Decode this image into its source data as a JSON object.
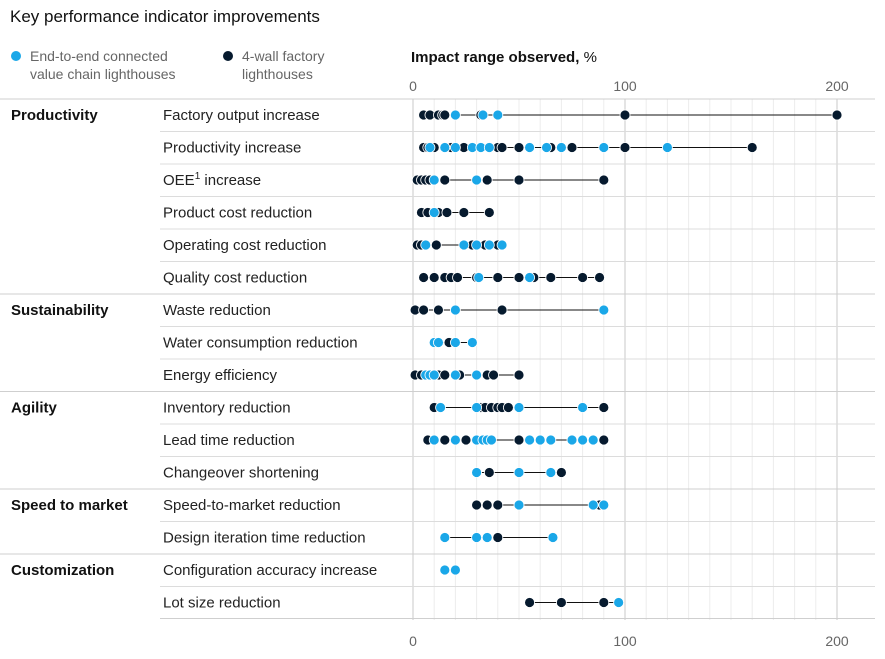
{
  "chart_data": {
    "type": "scatter",
    "title": "Key performance indicator improvements",
    "axis_title_bold": "Impact range observed,",
    "axis_title_unit": "%",
    "x_ticks": [
      0,
      100,
      200
    ],
    "xlim": [
      0,
      200
    ],
    "grid_step": 10,
    "legend": [
      {
        "line1": "End-to-end connected",
        "line2": "value chain lighthouses",
        "color": "#1aa7e8"
      },
      {
        "line1": "4-wall factory",
        "line2": "lighthouses",
        "color": "#061a2e"
      }
    ],
    "groups": [
      {
        "name": "Productivity",
        "rows": [
          {
            "label": "Factory output increase",
            "sup": "",
            "label_after": "",
            "e2e": [
              20,
              33,
              40
            ],
            "fw": [
              5,
              8,
              12,
              14,
              15,
              32,
              100,
              200
            ]
          },
          {
            "label": "Productivity increase",
            "sup": "",
            "label_after": "",
            "e2e": [
              8,
              15,
              20,
              28,
              32,
              36,
              55,
              63,
              70,
              90,
              120
            ],
            "fw": [
              5,
              7,
              10,
              18,
              24,
              40,
              42,
              50,
              65,
              75,
              100,
              160
            ]
          },
          {
            "label": "OEE",
            "sup": "1",
            "label_after": " increase",
            "e2e": [
              10,
              30
            ],
            "fw": [
              2,
              4,
              6,
              8,
              15,
              35,
              50,
              90
            ]
          },
          {
            "label": "Product cost reduction",
            "sup": "",
            "label_after": "",
            "e2e": [
              10
            ],
            "fw": [
              4,
              7,
              12,
              16,
              24,
              36
            ]
          },
          {
            "label": "Operating cost reduction",
            "sup": "",
            "label_after": "",
            "e2e": [
              6,
              24,
              30,
              36,
              42
            ],
            "fw": [
              2,
              4,
              11,
              28,
              34,
              40
            ]
          },
          {
            "label": "Quality cost reduction",
            "sup": "",
            "label_after": "",
            "e2e": [
              31,
              55
            ],
            "fw": [
              5,
              10,
              15,
              18,
              21,
              30,
              40,
              50,
              57,
              65,
              80,
              88
            ]
          }
        ]
      },
      {
        "name": "Sustainability",
        "rows": [
          {
            "label": "Waste reduction",
            "sup": "",
            "label_after": "",
            "e2e": [
              20,
              90
            ],
            "fw": [
              1,
              5,
              12,
              42
            ]
          },
          {
            "label": "Water consumption reduction",
            "sup": "",
            "label_after": "",
            "e2e": [
              10,
              12,
              20,
              28
            ],
            "fw": [
              17
            ]
          },
          {
            "label": "Energy efficiency",
            "sup": "",
            "label_after": "",
            "e2e": [
              6,
              8,
              10,
              20,
              30
            ],
            "fw": [
              1,
              4,
              12,
              15,
              22,
              35,
              38,
              50
            ]
          }
        ]
      },
      {
        "name": "Agility",
        "rows": [
          {
            "label": "Inventory reduction",
            "sup": "",
            "label_after": "",
            "e2e": [
              13,
              30,
              50,
              80
            ],
            "fw": [
              10,
              32,
              34,
              37,
              40,
              42,
              45,
              90
            ]
          },
          {
            "label": "Lead time reduction",
            "sup": "",
            "label_after": "",
            "e2e": [
              10,
              20,
              30,
              33,
              35,
              37,
              55,
              60,
              65,
              75,
              80,
              85
            ],
            "fw": [
              7,
              15,
              25,
              50,
              90
            ]
          },
          {
            "label": "Changeover shortening",
            "sup": "",
            "label_after": "",
            "e2e": [
              30,
              50,
              65
            ],
            "fw": [
              36,
              70
            ]
          }
        ]
      },
      {
        "name": "Speed to market",
        "rows": [
          {
            "label": "Speed-to-market reduction",
            "sup": "",
            "label_after": "",
            "e2e": [
              50,
              85,
              90
            ],
            "fw": [
              30,
              35,
              40,
              88
            ]
          },
          {
            "label": "Design iteration time reduction",
            "sup": "",
            "label_after": "",
            "e2e": [
              15,
              30,
              35,
              66
            ],
            "fw": [
              40
            ]
          }
        ]
      },
      {
        "name": "Customization",
        "rows": [
          {
            "label": "Configuration accuracy increase",
            "sup": "",
            "label_after": "",
            "e2e": [
              15,
              20
            ],
            "fw": []
          },
          {
            "label": "Lot size reduction",
            "sup": "",
            "label_after": "",
            "e2e": [
              97
            ],
            "fw": [
              55,
              70,
              90
            ]
          }
        ]
      }
    ]
  }
}
